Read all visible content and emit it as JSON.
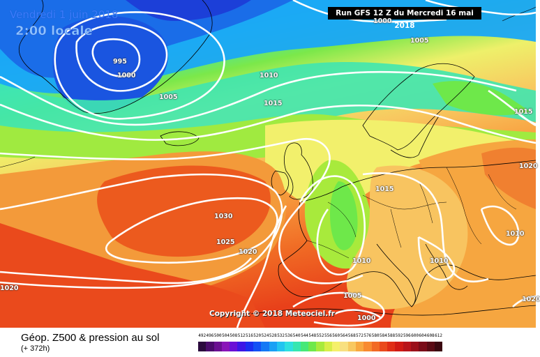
{
  "header": {
    "date": "Vendredi 1 juin 2018",
    "time": "2:00 locale",
    "run": "Run GFS 12 Z du Mercredi 16 mai 2018"
  },
  "copyright": "Copyright © 2018 Meteociel.fr",
  "legend": {
    "title": "Géop. Z500 & pression au sol",
    "subtitle": "(+ 372h)",
    "scale_values": [
      "492",
      "496",
      "500",
      "504",
      "508",
      "512",
      "516",
      "520",
      "524",
      "528",
      "532",
      "536",
      "540",
      "544",
      "548",
      "552",
      "556",
      "560",
      "564",
      "568",
      "572",
      "576",
      "580",
      "584",
      "588",
      "592",
      "596",
      "600",
      "604",
      "608",
      "612"
    ],
    "scale_colors": [
      "#2b0a3d",
      "#4a0b6b",
      "#6a0f91",
      "#8a14b8",
      "#6a0fd6",
      "#3c16e6",
      "#1a2ef0",
      "#1250f5",
      "#1478f5",
      "#1aa0f5",
      "#22c4f0",
      "#2ee0e0",
      "#36e6b0",
      "#46e878",
      "#6ee84a",
      "#a8ea3c",
      "#d8ee48",
      "#f5f06a",
      "#f8e080",
      "#f8c860",
      "#f8a840",
      "#f88a30",
      "#f26a24",
      "#ea4a1c",
      "#e02e16",
      "#d01a14",
      "#b8141a",
      "#9a101a",
      "#7a0c18",
      "#5a0a14",
      "#3a0810"
    ]
  },
  "isobar_labels": [
    {
      "text": "995"
    },
    {
      "text": "1000"
    },
    {
      "text": "1005"
    },
    {
      "text": "1010"
    },
    {
      "text": "1015"
    },
    {
      "text": "1000"
    },
    {
      "text": "1005"
    },
    {
      "text": "1015"
    },
    {
      "text": "1020"
    },
    {
      "text": "1030"
    },
    {
      "text": "1025"
    },
    {
      "text": "1020"
    },
    {
      "text": "1015"
    },
    {
      "text": "1010"
    },
    {
      "text": "1010"
    },
    {
      "text": "1010"
    },
    {
      "text": "1005"
    },
    {
      "text": "1000"
    },
    {
      "text": "1020"
    },
    {
      "text": "1020"
    }
  ],
  "colors": {
    "low_geopotential": "#1f6fe8",
    "high_geopotential": "#f03a1c",
    "isobar": "#ffffff",
    "coastline": "#000000"
  }
}
